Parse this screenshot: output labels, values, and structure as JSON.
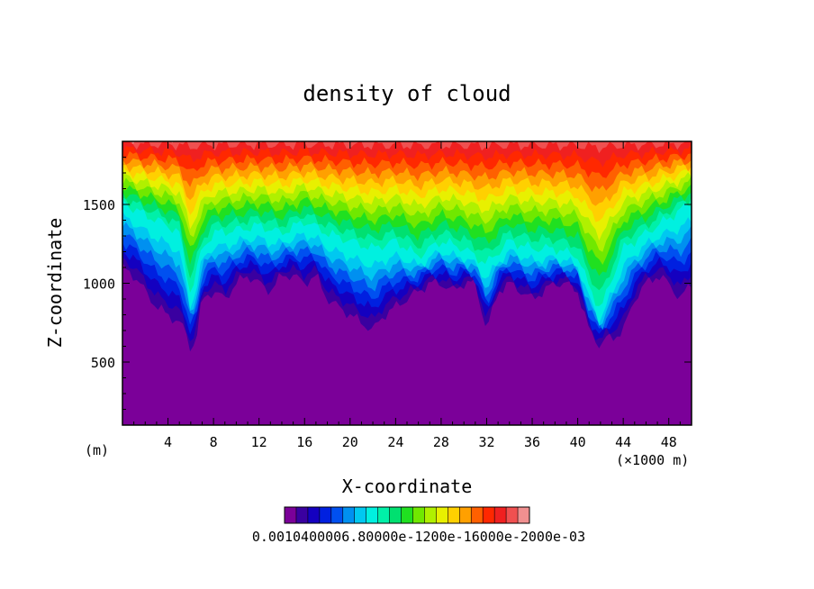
{
  "chart_data": {
    "type": "heatmap",
    "title": "density of cloud",
    "xlabel": "X-coordinate",
    "ylabel": "Z-coordinate",
    "x_unit_left": "(m)",
    "x_unit_right": "(×1000 m)",
    "xlim": [
      0,
      50
    ],
    "ylim": [
      100,
      1900
    ],
    "xticks": [
      4,
      8,
      12,
      16,
      20,
      24,
      28,
      32,
      36,
      40,
      44,
      48
    ],
    "xtick_labels": [
      "4",
      "8",
      "12",
      "16",
      "20",
      "24",
      "28",
      "32",
      "36",
      "40",
      "44",
      "48"
    ],
    "yticks": [
      500,
      1000,
      1500
    ],
    "ytick_labels": [
      "500",
      "1000",
      "1500"
    ],
    "colorbar_label": "0.0010400006.80000e-1200e-16000e-2000e-03",
    "colorbar_colors": [
      "#7b0099",
      "#3a00a0",
      "#1400c0",
      "#0020e0",
      "#0050f0",
      "#0090f0",
      "#00c8f0",
      "#00f0e0",
      "#00f0a8",
      "#00e070",
      "#20e020",
      "#70e800",
      "#b0f000",
      "#e8f000",
      "#ffd000",
      "#ffa000",
      "#ff6000",
      "#ff2800",
      "#f02020",
      "#f05050",
      "#f09090"
    ],
    "cloud_base_profile": {
      "x": [
        0,
        1,
        2,
        3,
        4,
        5,
        5.5,
        6,
        6.5,
        7,
        8,
        9,
        10,
        11,
        12,
        13,
        14,
        15,
        16,
        17,
        18,
        19,
        20,
        21,
        22,
        23,
        24,
        25,
        26,
        27,
        28,
        29,
        30,
        31,
        32,
        33,
        34,
        35,
        36,
        37,
        38,
        39,
        40,
        41,
        41.5,
        42,
        42.5,
        43,
        44,
        45,
        46,
        47,
        48,
        49,
        50
      ],
      "z": [
        1100,
        1050,
        950,
        850,
        800,
        750,
        700,
        580,
        650,
        900,
        950,
        900,
        1000,
        1050,
        1000,
        950,
        1050,
        1050,
        1000,
        1050,
        900,
        850,
        800,
        750,
        700,
        800,
        850,
        900,
        950,
        1000,
        1000,
        950,
        1000,
        1000,
        700,
        950,
        1000,
        950,
        900,
        950,
        1000,
        1000,
        950,
        700,
        650,
        600,
        650,
        650,
        700,
        900,
        1000,
        1050,
        1000,
        900,
        1000
      ]
    },
    "cloud_top_profile": {
      "x": [
        0,
        2,
        4,
        5,
        6,
        7,
        8,
        10,
        12,
        14,
        16,
        18,
        20,
        22,
        24,
        26,
        28,
        30,
        32,
        34,
        36,
        38,
        40,
        41,
        42,
        43,
        44,
        46,
        48,
        50
      ],
      "z": [
        1500,
        1420,
        1350,
        1300,
        900,
        1200,
        1300,
        1320,
        1350,
        1300,
        1380,
        1300,
        1250,
        1200,
        1250,
        1150,
        1250,
        1200,
        1100,
        1250,
        1200,
        1200,
        1150,
        950,
        800,
        1000,
        1200,
        1300,
        1400,
        1500
      ]
    }
  }
}
